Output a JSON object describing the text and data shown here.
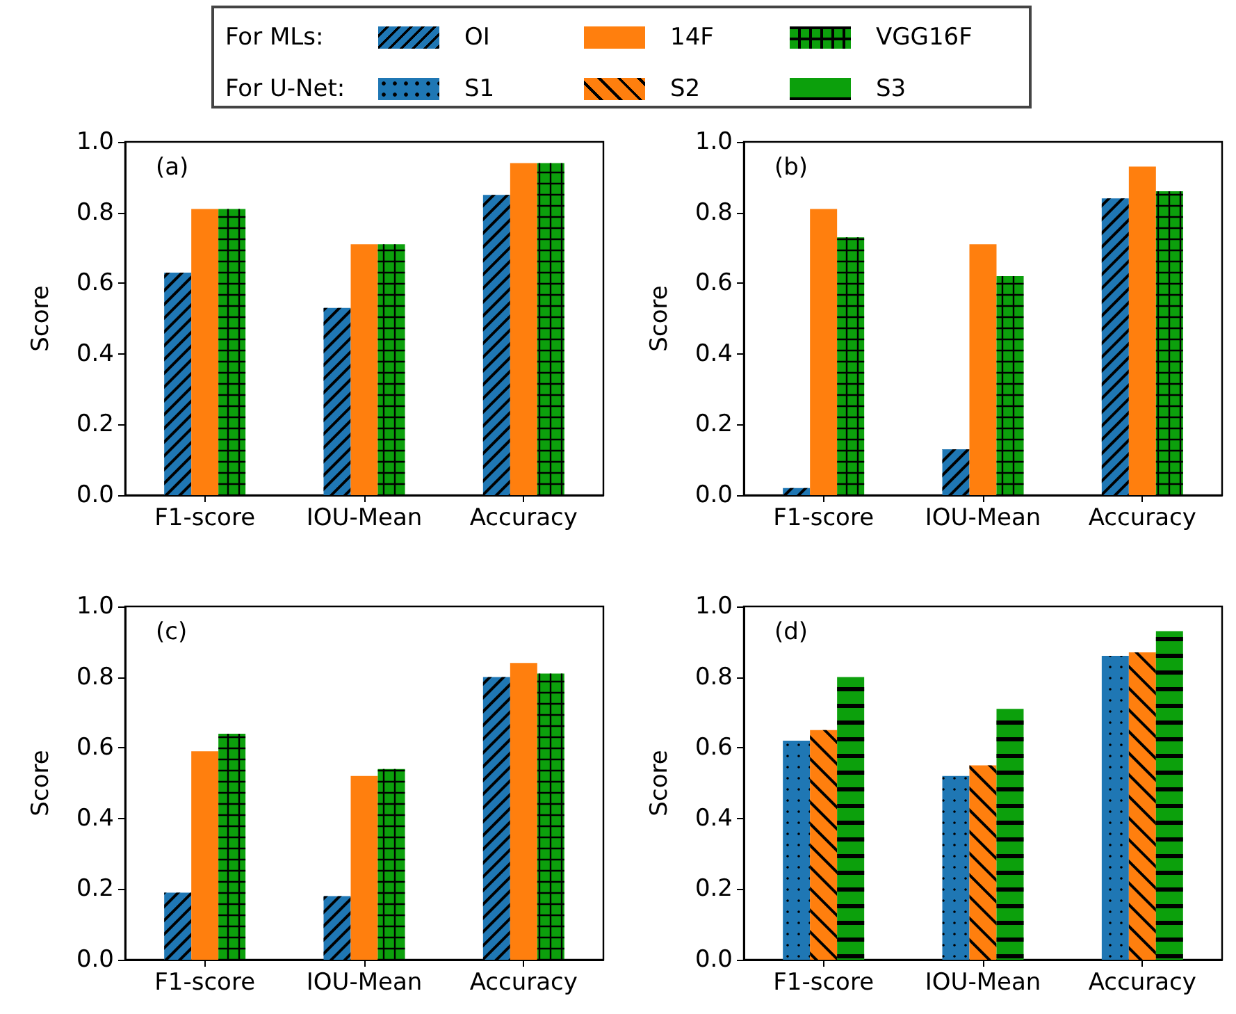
{
  "chart_data": [
    {
      "type": "bar",
      "legend_title": "For MLs:",
      "legend": "top",
      "ylabel": "Score",
      "annotations": [
        "(a)"
      ],
      "categories": [
        "F1-score",
        "IOU-Mean",
        "Accuracy"
      ],
      "ylim": [
        0,
        1.0
      ],
      "yticks": [
        {
          "value": 0,
          "label": "0.0"
        },
        {
          "value": 0.2,
          "label": "0.2"
        },
        {
          "value": 0.4,
          "label": "0.4"
        },
        {
          "value": 0.6,
          "label": "0.6"
        },
        {
          "value": 0.8,
          "label": "0.8"
        },
        {
          "value": 1.0,
          "label": "1.0"
        }
      ],
      "series": [
        {
          "name": "OI",
          "color": "#1f77b4",
          "values": [
            0.63,
            0.53,
            0.85
          ]
        },
        {
          "name": "14F",
          "color": "#ff7f0e",
          "values": [
            0.81,
            0.71,
            0.94
          ]
        },
        {
          "name": "VGG16F",
          "color": "#0ca00c",
          "values": [
            0.81,
            0.71,
            0.94
          ]
        }
      ]
    },
    {
      "type": "bar",
      "ylabel": "Score",
      "annotations": [
        "(b)"
      ],
      "categories": [
        "F1-score",
        "IOU-Mean",
        "Accuracy"
      ],
      "ylim": [
        0,
        1.0
      ],
      "yticks": [
        {
          "value": 0,
          "label": "0.0"
        },
        {
          "value": 0.2,
          "label": "0.2"
        },
        {
          "value": 0.4,
          "label": "0.4"
        },
        {
          "value": 0.6,
          "label": "0.6"
        },
        {
          "value": 0.8,
          "label": "0.8"
        },
        {
          "value": 1.0,
          "label": "1.0"
        }
      ],
      "series": [
        {
          "color": "#1f77b4",
          "values": [
            0.02,
            0.13,
            0.84
          ]
        },
        {
          "color": "#ff7f0e",
          "values": [
            0.81,
            0.71,
            0.93
          ]
        },
        {
          "color": "#0ca00c",
          "values": [
            0.73,
            0.62,
            0.86
          ]
        }
      ]
    },
    {
      "type": "bar",
      "ylabel": "Score",
      "annotations": [
        "(c)"
      ],
      "categories": [
        "F1-score",
        "IOU-Mean",
        "Accuracy"
      ],
      "ylim": [
        0,
        1.0
      ],
      "yticks": [
        {
          "value": 0,
          "label": "0.0"
        },
        {
          "value": 0.2,
          "label": "0.2"
        },
        {
          "value": 0.4,
          "label": "0.4"
        },
        {
          "value": 0.6,
          "label": "0.6"
        },
        {
          "value": 0.8,
          "label": "0.8"
        },
        {
          "value": 1.0,
          "label": "1.0"
        }
      ],
      "series": [
        {
          "color": "#1f77b4",
          "values": [
            0.19,
            0.18,
            0.8
          ]
        },
        {
          "color": "#ff7f0e",
          "values": [
            0.59,
            0.52,
            0.84
          ]
        },
        {
          "color": "#0ca00c",
          "values": [
            0.64,
            0.54,
            0.81
          ]
        }
      ]
    },
    {
      "type": "bar",
      "legend_title": "For U-Net:",
      "legend": "top",
      "ylabel": "Score",
      "annotations": [
        "(d)"
      ],
      "categories": [
        "F1-score",
        "IOU-Mean",
        "Accuracy"
      ],
      "ylim": [
        0,
        1.0
      ],
      "yticks": [
        {
          "value": 0,
          "label": "0.0"
        },
        {
          "value": 0.2,
          "label": "0.2"
        },
        {
          "value": 0.4,
          "label": "0.4"
        },
        {
          "value": 0.6,
          "label": "0.6"
        },
        {
          "value": 0.8,
          "label": "0.8"
        },
        {
          "value": 1.0,
          "label": "1.0"
        }
      ],
      "series": [
        {
          "name": "S1",
          "color": "#1f77b4",
          "values": [
            0.62,
            0.52,
            0.86
          ]
        },
        {
          "name": "S2",
          "color": "#ff7f0e",
          "values": [
            0.65,
            0.55,
            0.87
          ]
        },
        {
          "name": "S3",
          "color": "#0ca00c",
          "values": [
            0.8,
            0.71,
            0.93
          ]
        }
      ]
    }
  ]
}
